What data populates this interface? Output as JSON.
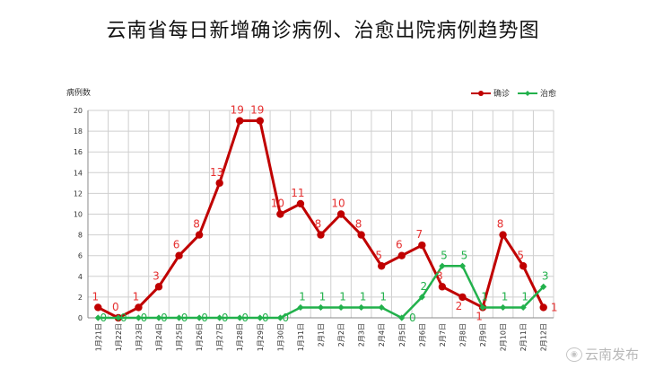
{
  "chart_data": {
    "type": "line",
    "title": "云南省每日新增确诊病例、治愈出院病例趋势图",
    "ylabel": "病例数",
    "xlabel": "",
    "ylim": [
      0,
      20
    ],
    "yticks": [
      0,
      2,
      4,
      6,
      8,
      10,
      12,
      14,
      16,
      18,
      20
    ],
    "grid": true,
    "legend_position": "top-right",
    "categories": [
      "1月21日",
      "1月22日",
      "1月23日",
      "1月24日",
      "1月25日",
      "1月26日",
      "1月27日",
      "1月28日",
      "1月29日",
      "1月30日",
      "1月31日",
      "2月1日",
      "2月2日",
      "2月3日",
      "2月4日",
      "2月5日",
      "2月6日",
      "2月7日",
      "2月8日",
      "2月9日",
      "2月10日",
      "2月11日",
      "2月12日"
    ],
    "series": [
      {
        "name": "确诊",
        "color": "#c00000",
        "label_color": "#e53030",
        "values": [
          1,
          0,
          1,
          3,
          6,
          8,
          13,
          19,
          19,
          10,
          11,
          8,
          10,
          8,
          5,
          6,
          7,
          3,
          2,
          1,
          8,
          5,
          1
        ]
      },
      {
        "name": "治愈",
        "color": "#22b14c",
        "label_color": "#22b14c",
        "values": [
          0,
          0,
          0,
          0,
          0,
          0,
          0,
          0,
          0,
          0,
          1,
          1,
          1,
          1,
          1,
          0,
          2,
          5,
          5,
          1,
          1,
          1,
          3
        ]
      }
    ]
  },
  "watermark": {
    "text": "云南发布",
    "icon": "weibo-icon"
  }
}
